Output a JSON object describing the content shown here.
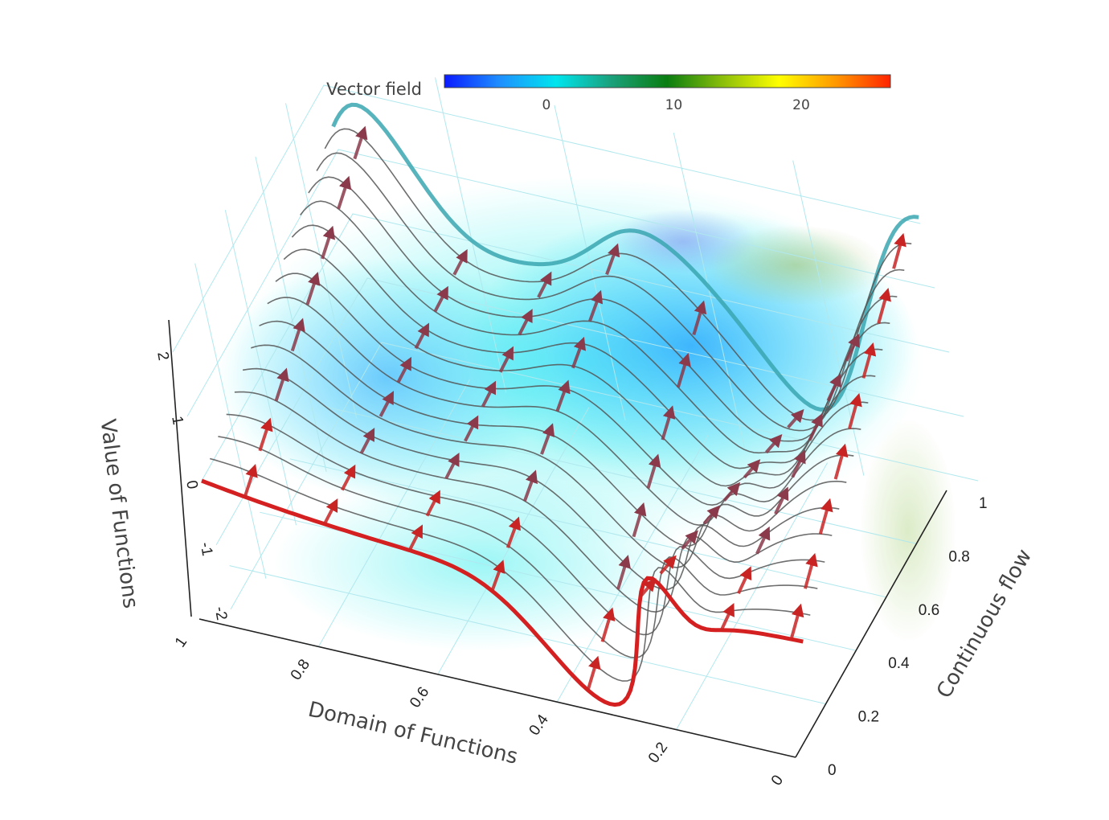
{
  "chart_data": {
    "type": "3d-surface-lines",
    "title": "",
    "colorbar": {
      "title": "Vector field",
      "colorscale": [
        "#0a1aff",
        "#1e90ff",
        "#00e5ee",
        "#1aa07a",
        "#0a7d10",
        "#8cbf0a",
        "#ffff00",
        "#ff9a00",
        "#ff2400"
      ],
      "range": [
        -8,
        27
      ],
      "ticks": [
        0,
        10,
        20
      ]
    },
    "axes": {
      "x": {
        "label": "Domain of Functions",
        "range": [
          0,
          1
        ],
        "ticks": [
          "0",
          "0.2",
          "0.4",
          "0.6",
          "0.8",
          "1"
        ]
      },
      "y": {
        "label": "Continuous flow",
        "range": [
          0,
          1
        ],
        "ticks": [
          "0",
          "0.2",
          "0.4",
          "0.6",
          "0.8",
          "1"
        ]
      },
      "z": {
        "label": "Value of Functions",
        "range": [
          -2.5,
          2.5
        ],
        "ticks": [
          "-2",
          "-1",
          "0",
          "1",
          "2"
        ]
      }
    },
    "series": [
      {
        "name": "",
        "description_role": "start-function",
        "color": "#d42020",
        "t": 0
      },
      {
        "name": "",
        "description_role": "end-function",
        "color": "#3aa6b0",
        "t": 1
      },
      {
        "name": "",
        "description_role": "intermediate-functions",
        "color": "#555555",
        "count": 15
      },
      {
        "name": "",
        "description_role": "flow-arrows",
        "colors": [
          "#c82424",
          "#8a3a4a"
        ]
      }
    ],
    "grid": true
  }
}
